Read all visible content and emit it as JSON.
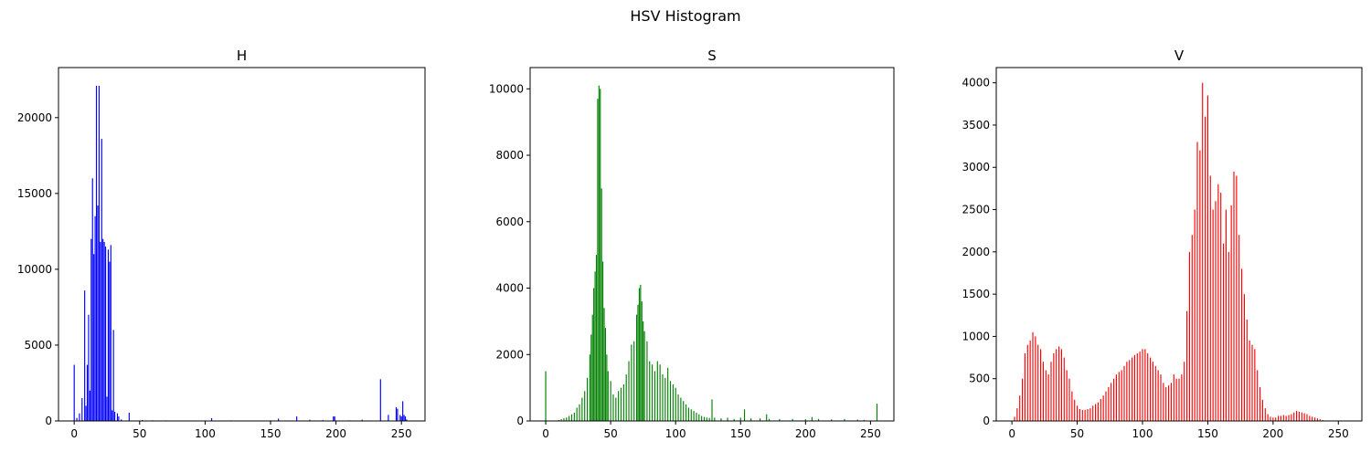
{
  "suptitle": "HSV Histogram",
  "chart_data": [
    {
      "type": "bar",
      "title": "H",
      "color": "#0000ff",
      "xlim": [
        -12,
        268
      ],
      "ylim": [
        0,
        23300
      ],
      "xticks": [
        0,
        50,
        100,
        150,
        200,
        250
      ],
      "yticks": [
        0,
        5000,
        10000,
        15000,
        20000
      ],
      "points": [
        [
          0,
          3700
        ],
        [
          2,
          200
        ],
        [
          4,
          500
        ],
        [
          6,
          1500
        ],
        [
          8,
          8600
        ],
        [
          9,
          1000
        ],
        [
          10,
          3700
        ],
        [
          11,
          7000
        ],
        [
          12,
          2000
        ],
        [
          13,
          12000
        ],
        [
          14,
          16000
        ],
        [
          15,
          11000
        ],
        [
          16,
          13500
        ],
        [
          17,
          22100
        ],
        [
          18,
          14200
        ],
        [
          19,
          22100
        ],
        [
          20,
          11800
        ],
        [
          21,
          18600
        ],
        [
          22,
          12000
        ],
        [
          23,
          11800
        ],
        [
          24,
          11500
        ],
        [
          25,
          1600
        ],
        [
          26,
          11300
        ],
        [
          27,
          10500
        ],
        [
          28,
          11600
        ],
        [
          29,
          700
        ],
        [
          30,
          6000
        ],
        [
          31,
          600
        ],
        [
          33,
          500
        ],
        [
          34,
          300
        ],
        [
          36,
          100
        ],
        [
          42,
          550
        ],
        [
          52,
          60
        ],
        [
          60,
          40
        ],
        [
          70,
          40
        ],
        [
          80,
          30
        ],
        [
          90,
          30
        ],
        [
          105,
          180
        ],
        [
          120,
          40
        ],
        [
          140,
          30
        ],
        [
          150,
          40
        ],
        [
          156,
          150
        ],
        [
          170,
          300
        ],
        [
          180,
          80
        ],
        [
          190,
          50
        ],
        [
          198,
          300
        ],
        [
          199,
          300
        ],
        [
          210,
          40
        ],
        [
          220,
          80
        ],
        [
          234,
          2750
        ],
        [
          240,
          400
        ],
        [
          246,
          900
        ],
        [
          247,
          800
        ],
        [
          249,
          400
        ],
        [
          250,
          300
        ],
        [
          251,
          1300
        ],
        [
          252,
          400
        ],
        [
          253,
          300
        ],
        [
          254,
          100
        ]
      ]
    },
    {
      "type": "bar",
      "title": "S",
      "color": "#008000",
      "xlim": [
        -12,
        268
      ],
      "ylim": [
        0,
        10640
      ],
      "xticks": [
        0,
        50,
        100,
        150,
        200,
        250
      ],
      "yticks": [
        0,
        2000,
        4000,
        6000,
        8000,
        10000
      ],
      "points": [
        [
          0,
          1500
        ],
        [
          10,
          30
        ],
        [
          12,
          50
        ],
        [
          14,
          80
        ],
        [
          16,
          100
        ],
        [
          18,
          150
        ],
        [
          20,
          200
        ],
        [
          22,
          250
        ],
        [
          24,
          400
        ],
        [
          26,
          500
        ],
        [
          28,
          700
        ],
        [
          30,
          900
        ],
        [
          32,
          1300
        ],
        [
          34,
          2000
        ],
        [
          35,
          2600
        ],
        [
          36,
          3200
        ],
        [
          37,
          4000
        ],
        [
          38,
          4500
        ],
        [
          39,
          5000
        ],
        [
          40,
          9700
        ],
        [
          41,
          10100
        ],
        [
          42,
          10000
        ],
        [
          43,
          7000
        ],
        [
          44,
          4800
        ],
        [
          45,
          3400
        ],
        [
          46,
          2800
        ],
        [
          47,
          2000
        ],
        [
          48,
          1500
        ],
        [
          50,
          1200
        ],
        [
          52,
          800
        ],
        [
          54,
          700
        ],
        [
          56,
          900
        ],
        [
          58,
          1000
        ],
        [
          60,
          1100
        ],
        [
          62,
          1400
        ],
        [
          64,
          1800
        ],
        [
          66,
          2300
        ],
        [
          68,
          2400
        ],
        [
          70,
          3200
        ],
        [
          71,
          3500
        ],
        [
          72,
          4000
        ],
        [
          73,
          4100
        ],
        [
          74,
          3600
        ],
        [
          75,
          3000
        ],
        [
          76,
          2700
        ],
        [
          78,
          2400
        ],
        [
          80,
          1800
        ],
        [
          82,
          1700
        ],
        [
          84,
          1500
        ],
        [
          86,
          1800
        ],
        [
          88,
          1700
        ],
        [
          90,
          1400
        ],
        [
          92,
          1300
        ],
        [
          94,
          1600
        ],
        [
          96,
          1200
        ],
        [
          98,
          1100
        ],
        [
          100,
          1000
        ],
        [
          102,
          800
        ],
        [
          104,
          700
        ],
        [
          106,
          600
        ],
        [
          108,
          500
        ],
        [
          110,
          400
        ],
        [
          112,
          350
        ],
        [
          114,
          300
        ],
        [
          116,
          250
        ],
        [
          118,
          200
        ],
        [
          120,
          150
        ],
        [
          122,
          120
        ],
        [
          124,
          100
        ],
        [
          126,
          90
        ],
        [
          128,
          650
        ],
        [
          130,
          100
        ],
        [
          135,
          80
        ],
        [
          140,
          100
        ],
        [
          145,
          60
        ],
        [
          150,
          100
        ],
        [
          153,
          350
        ],
        [
          158,
          80
        ],
        [
          165,
          80
        ],
        [
          170,
          200
        ],
        [
          172,
          60
        ],
        [
          180,
          60
        ],
        [
          190,
          60
        ],
        [
          200,
          50
        ],
        [
          205,
          120
        ],
        [
          210,
          60
        ],
        [
          220,
          50
        ],
        [
          230,
          60
        ],
        [
          240,
          40
        ],
        [
          245,
          30
        ],
        [
          255,
          520
        ]
      ]
    },
    {
      "type": "bar",
      "title": "V",
      "color": "#ff0000",
      "xlim": [
        -12,
        268
      ],
      "ylim": [
        0,
        4180
      ],
      "xticks": [
        0,
        50,
        100,
        150,
        200,
        250
      ],
      "yticks": [
        0,
        500,
        1000,
        1500,
        2000,
        2500,
        3000,
        3500,
        4000
      ],
      "points": [
        [
          2,
          50
        ],
        [
          4,
          150
        ],
        [
          6,
          300
        ],
        [
          8,
          500
        ],
        [
          10,
          800
        ],
        [
          12,
          900
        ],
        [
          14,
          950
        ],
        [
          16,
          1050
        ],
        [
          18,
          1000
        ],
        [
          20,
          900
        ],
        [
          22,
          850
        ],
        [
          24,
          700
        ],
        [
          26,
          600
        ],
        [
          28,
          550
        ],
        [
          30,
          700
        ],
        [
          32,
          800
        ],
        [
          34,
          850
        ],
        [
          36,
          880
        ],
        [
          38,
          850
        ],
        [
          40,
          750
        ],
        [
          42,
          600
        ],
        [
          44,
          500
        ],
        [
          46,
          350
        ],
        [
          48,
          250
        ],
        [
          50,
          180
        ],
        [
          52,
          140
        ],
        [
          54,
          130
        ],
        [
          56,
          130
        ],
        [
          58,
          140
        ],
        [
          60,
          150
        ],
        [
          62,
          180
        ],
        [
          64,
          200
        ],
        [
          66,
          220
        ],
        [
          68,
          260
        ],
        [
          70,
          300
        ],
        [
          72,
          350
        ],
        [
          74,
          400
        ],
        [
          76,
          450
        ],
        [
          78,
          500
        ],
        [
          80,
          550
        ],
        [
          82,
          580
        ],
        [
          84,
          600
        ],
        [
          86,
          650
        ],
        [
          88,
          700
        ],
        [
          90,
          720
        ],
        [
          92,
          750
        ],
        [
          94,
          780
        ],
        [
          96,
          800
        ],
        [
          98,
          820
        ],
        [
          100,
          850
        ],
        [
          102,
          850
        ],
        [
          104,
          800
        ],
        [
          106,
          750
        ],
        [
          108,
          700
        ],
        [
          110,
          650
        ],
        [
          112,
          600
        ],
        [
          114,
          550
        ],
        [
          116,
          450
        ],
        [
          118,
          400
        ],
        [
          120,
          420
        ],
        [
          122,
          450
        ],
        [
          124,
          550
        ],
        [
          126,
          500
        ],
        [
          128,
          500
        ],
        [
          130,
          550
        ],
        [
          132,
          700
        ],
        [
          134,
          1300
        ],
        [
          136,
          2000
        ],
        [
          138,
          2200
        ],
        [
          140,
          2500
        ],
        [
          142,
          3300
        ],
        [
          144,
          3200
        ],
        [
          146,
          4000
        ],
        [
          148,
          3600
        ],
        [
          150,
          3850
        ],
        [
          152,
          2900
        ],
        [
          154,
          2500
        ],
        [
          156,
          2600
        ],
        [
          158,
          2800
        ],
        [
          160,
          2700
        ],
        [
          162,
          2100
        ],
        [
          164,
          2500
        ],
        [
          166,
          2000
        ],
        [
          168,
          2550
        ],
        [
          170,
          2950
        ],
        [
          172,
          2900
        ],
        [
          174,
          2200
        ],
        [
          176,
          1800
        ],
        [
          178,
          1500
        ],
        [
          180,
          1200
        ],
        [
          182,
          950
        ],
        [
          184,
          900
        ],
        [
          186,
          850
        ],
        [
          188,
          600
        ],
        [
          190,
          400
        ],
        [
          192,
          250
        ],
        [
          194,
          150
        ],
        [
          196,
          80
        ],
        [
          198,
          50
        ],
        [
          200,
          40
        ],
        [
          202,
          40
        ],
        [
          204,
          60
        ],
        [
          206,
          60
        ],
        [
          208,
          70
        ],
        [
          210,
          60
        ],
        [
          212,
          70
        ],
        [
          214,
          80
        ],
        [
          216,
          100
        ],
        [
          218,
          120
        ],
        [
          220,
          110
        ],
        [
          222,
          100
        ],
        [
          224,
          90
        ],
        [
          226,
          80
        ],
        [
          228,
          60
        ],
        [
          230,
          50
        ],
        [
          232,
          40
        ],
        [
          234,
          30
        ],
        [
          236,
          20
        ],
        [
          238,
          10
        ]
      ]
    }
  ]
}
